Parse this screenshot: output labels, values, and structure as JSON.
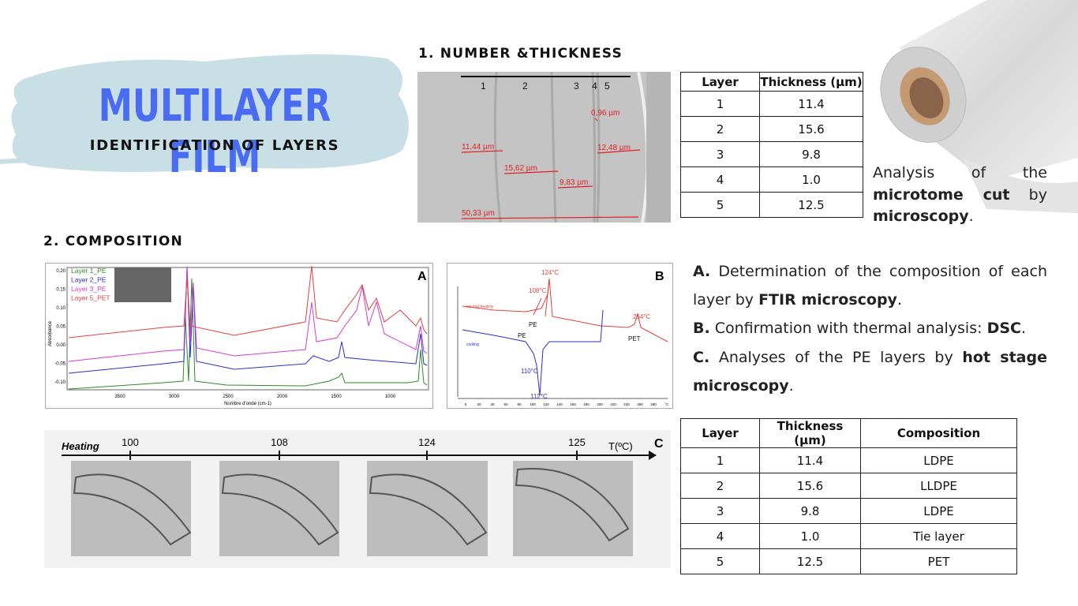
{
  "header": {
    "title": "MULTILAYER FILM",
    "subtitle": "IDENTIFICATION OF LAYERS"
  },
  "section1": {
    "title": "1. NUMBER &THICKNESS",
    "micrograph": {
      "layer_numbers": [
        "1",
        "2",
        "3",
        "4",
        "5"
      ],
      "measurements": [
        "11,44 µm",
        "15,62 µm",
        "9,83 µm",
        "0,96 µm",
        "12,48 µm",
        "50,33 µm"
      ]
    },
    "table": {
      "header": [
        "Layer",
        "Thickness (µm)"
      ],
      "rows": [
        [
          "1",
          "11.4"
        ],
        [
          "2",
          "15.6"
        ],
        [
          "3",
          "9.8"
        ],
        [
          "4",
          "1.0"
        ],
        [
          "5",
          "12.5"
        ]
      ]
    },
    "caption": [
      "Analysis of the ",
      "microtome cut",
      " by ",
      "microscopy",
      "."
    ]
  },
  "section2": {
    "title": "2. COMPOSITION",
    "ftir": {
      "panel": "A",
      "legend": [
        "Layer 1_PE",
        "Layer 2_PE",
        "Layer 3_PE",
        "Layer 5_PET"
      ],
      "ylabel": "Absorbance",
      "yticks": [
        "0.20",
        "0.15",
        "0.10",
        "0.05",
        "0.00",
        "-0.05",
        "-0.10"
      ],
      "xticks": [
        "3500",
        "3000",
        "2500",
        "2000",
        "1500",
        "1000"
      ],
      "xlabel": "Nombre d'onde (cm-1)"
    },
    "dsc": {
      "panel": "B",
      "labels": [
        "124°C",
        "108°C",
        "second heating",
        "PE",
        "254°C",
        "PET",
        "cooling",
        "PE",
        "110°C",
        "112°C"
      ],
      "xticks": [
        "0",
        "20",
        "40",
        "60",
        "80",
        "100",
        "120",
        "140",
        "160",
        "180",
        "200",
        "220",
        "240",
        "260",
        "280",
        "°C"
      ]
    },
    "hot_stage": {
      "panel": "C",
      "axis_label": "Heating",
      "ticks": [
        "100",
        "108",
        "124",
        "125"
      ],
      "unit": "T(ºC)"
    },
    "notes": [
      {
        "label": "A.",
        "parts": [
          " Determination of the composition of each layer by ",
          "FTIR microscopy",
          "."
        ]
      },
      {
        "label": "B.",
        "parts": [
          "  Confirmation with thermal analysis: ",
          "DSC",
          "."
        ]
      },
      {
        "label": "C.",
        "parts": [
          " Analyses of the PE layers by ",
          "hot stage microscopy",
          "."
        ]
      }
    ],
    "table": {
      "header": [
        "Layer",
        "Thickness (µm)",
        "Composition"
      ],
      "rows": [
        [
          "1",
          "11.4",
          "LDPE"
        ],
        [
          "2",
          "15.6",
          "LLDPE"
        ],
        [
          "3",
          "9.8",
          "LDPE"
        ],
        [
          "4",
          "1.0",
          "Tie layer"
        ],
        [
          "5",
          "12.5",
          "PET"
        ]
      ]
    }
  }
}
